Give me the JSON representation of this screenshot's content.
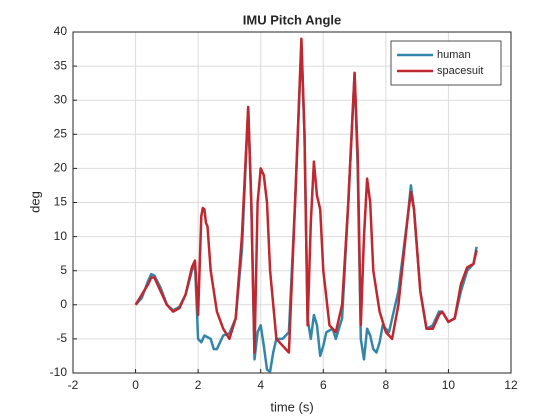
{
  "chart_data": {
    "type": "line",
    "title": "IMU Pitch Angle",
    "x_label": "time (s)",
    "y_label": "deg",
    "xlim": [
      -2,
      12
    ],
    "ylim": [
      -10,
      40
    ],
    "xticks": [
      -2,
      0,
      2,
      4,
      6,
      8,
      10,
      12
    ],
    "yticks": [
      -10,
      -5,
      0,
      5,
      10,
      15,
      20,
      25,
      30,
      35,
      40
    ],
    "grid": true,
    "legend": "northeast",
    "series": [
      {
        "name": "human",
        "color": "#3386a8",
        "x": [
          0,
          0.2,
          0.4,
          0.5,
          0.6,
          0.8,
          1.0,
          1.2,
          1.4,
          1.6,
          1.8,
          1.9,
          2.0,
          2.1,
          2.2,
          2.4,
          2.5,
          2.6,
          2.8,
          3.0,
          3.2,
          3.4,
          3.6,
          3.7,
          3.8,
          3.9,
          4.0,
          4.1,
          4.2,
          4.3,
          4.4,
          4.5,
          4.7,
          4.9,
          5.1,
          5.3,
          5.4,
          5.5,
          5.6,
          5.7,
          5.8,
          5.9,
          6.0,
          6.1,
          6.3,
          6.4,
          6.6,
          6.8,
          7.0,
          7.1,
          7.2,
          7.3,
          7.4,
          7.5,
          7.6,
          7.7,
          7.8,
          7.9,
          8.1,
          8.4,
          8.7,
          8.8,
          8.9,
          9.1,
          9.3,
          9.5,
          9.7,
          9.8,
          10.0,
          10.2,
          10.4,
          10.6,
          10.8,
          10.9
        ],
        "values": [
          0,
          1,
          3.5,
          4.5,
          4.3,
          2.5,
          0,
          -0.8,
          -0.3,
          1.5,
          5,
          6,
          -5,
          -5.5,
          -4.5,
          -5,
          -6.5,
          -6.5,
          -4.5,
          -4.2,
          -2,
          8,
          29,
          15,
          -8,
          -4,
          -3,
          -6,
          -9.5,
          -9.8,
          -7,
          -5,
          -5,
          -4,
          15,
          38,
          25,
          -2,
          -5,
          -1.5,
          -3,
          -7.5,
          -6,
          -4,
          -3.5,
          -5,
          -2,
          15,
          34,
          20,
          -5,
          -8,
          -3.5,
          -4.5,
          -6.5,
          -7,
          -5.5,
          -3,
          -4,
          2,
          13,
          17.5,
          14,
          2,
          -3.5,
          -3,
          -1,
          -1,
          -2.5,
          -2,
          2,
          5,
          6,
          8.5
        ]
      },
      {
        "name": "spacesuit",
        "color": "#c0272f",
        "x": [
          0,
          0.2,
          0.4,
          0.5,
          0.6,
          0.8,
          1.0,
          1.2,
          1.4,
          1.6,
          1.8,
          1.9,
          2.0,
          2.1,
          2.15,
          2.2,
          2.25,
          2.3,
          2.4,
          2.6,
          2.8,
          3.0,
          3.2,
          3.4,
          3.6,
          3.7,
          3.8,
          3.9,
          4.0,
          4.1,
          4.2,
          4.3,
          4.5,
          4.7,
          4.9,
          5.1,
          5.3,
          5.4,
          5.5,
          5.6,
          5.7,
          5.8,
          5.9,
          6.0,
          6.2,
          6.4,
          6.6,
          6.8,
          7.0,
          7.1,
          7.2,
          7.3,
          7.4,
          7.5,
          7.6,
          7.8,
          8.0,
          8.2,
          8.4,
          8.7,
          8.8,
          8.9,
          9.1,
          9.3,
          9.5,
          9.7,
          9.8,
          10.0,
          10.2,
          10.4,
          10.6,
          10.8,
          10.9
        ],
        "values": [
          0,
          1.5,
          3,
          4,
          4,
          2,
          0,
          -1,
          -0.5,
          1.5,
          5.5,
          6.5,
          -1.5,
          13,
          14.2,
          14,
          12,
          11.5,
          5,
          -1,
          -3.5,
          -5,
          -2,
          10,
          29,
          15,
          -7,
          15,
          20,
          19,
          15,
          5,
          -5,
          -6,
          -7,
          15,
          39,
          25,
          -3,
          12,
          21,
          16,
          14,
          5,
          -3,
          -4,
          0,
          15,
          34,
          22,
          -3,
          10,
          18.5,
          15,
          5,
          -1,
          -4,
          -5,
          0,
          13,
          16.5,
          14,
          2,
          -3.5,
          -3.5,
          -1.5,
          -1,
          -2.5,
          -2,
          3,
          5.5,
          6,
          8
        ]
      }
    ]
  }
}
